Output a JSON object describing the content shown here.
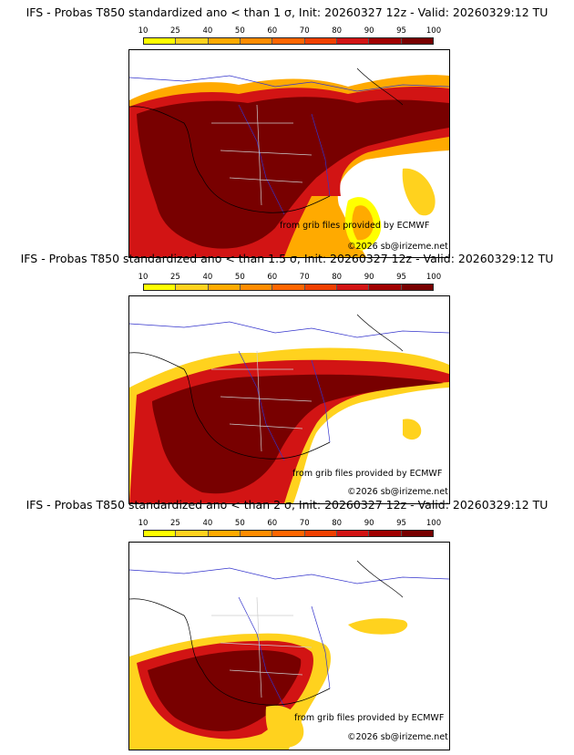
{
  "colorbar": {
    "levels": [
      "10",
      "25",
      "40",
      "50",
      "60",
      "70",
      "80",
      "90",
      "95",
      "100"
    ],
    "colors": [
      "#ffff00",
      "#ffd21e",
      "#ffaa00",
      "#ff8c00",
      "#ff6600",
      "#f04000",
      "#d21414",
      "#a00000",
      "#780000"
    ]
  },
  "credits": {
    "source": "from grib files provided by ECMWF",
    "copyright": "©2026 sb@irizeme.net"
  },
  "panels": [
    {
      "title": "IFS - Probas T850  standardized ano < than 1 σ, Init: 20260327 12z - Valid: 20260329:12 TU"
    },
    {
      "title": "IFS - Probas T850  standardized ano < than 1.5 σ, Init: 20260327 12z - Valid: 20260329:12 TU"
    },
    {
      "title": "IFS - Probas T850  standardized ano < than 2 σ, Init: 20260327 12z - Valid: 20260329:12 TU"
    }
  ]
}
